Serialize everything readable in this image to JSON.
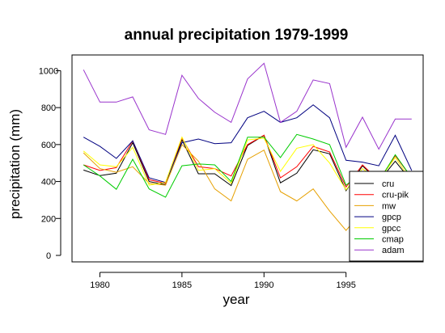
{
  "chart_data": {
    "type": "line",
    "title": "annual precipitation 1979-1999",
    "xlabel": "year",
    "ylabel": "precipitation (mm)",
    "xlim": [
      1978.3,
      1999.7
    ],
    "ylim": [
      -35,
      1085
    ],
    "x_ticks": [
      1980,
      1985,
      1990,
      1995
    ],
    "y_ticks": [
      0,
      200,
      400,
      600,
      800,
      1000
    ],
    "legend_position": "bottom-right",
    "grid": false,
    "x": [
      1979,
      1980,
      1981,
      1982,
      1983,
      1984,
      1985,
      1986,
      1987,
      1988,
      1989,
      1990,
      1991,
      1992,
      1993,
      1994,
      1995,
      1996,
      1997,
      1998,
      1999
    ],
    "series": [
      {
        "name": "cru",
        "color": "#000000",
        "values": [
          462,
          432,
          445,
          610,
          400,
          383,
          625,
          442,
          442,
          378,
          595,
          650,
          393,
          445,
          572,
          550,
          350,
          485,
          400,
          510,
          400
        ]
      },
      {
        "name": "cru-pik",
        "color": "#ff0000",
        "values": [
          490,
          460,
          475,
          620,
          410,
          390,
          635,
          480,
          470,
          430,
          600,
          650,
          420,
          480,
          590,
          560,
          370,
          490,
          405,
          540,
          420
        ]
      },
      {
        "name": "mw",
        "color": "#e6a000",
        "values": [
          555,
          470,
          450,
          480,
          390,
          380,
          600,
          510,
          360,
          295,
          520,
          570,
          345,
          295,
          360,
          240,
          135,
          240,
          175,
          250,
          185
        ]
      },
      {
        "name": "gpcp",
        "color": "#000080",
        "values": [
          640,
          590,
          525,
          620,
          420,
          395,
          610,
          630,
          605,
          610,
          745,
          780,
          720,
          745,
          815,
          745,
          515,
          505,
          485,
          650,
          460
        ]
      },
      {
        "name": "gpcc",
        "color": "#ffff00",
        "values": [
          565,
          490,
          480,
          585,
          380,
          395,
          640,
          460,
          470,
          390,
          625,
          635,
          455,
          580,
          600,
          500,
          355,
          470,
          405,
          530,
          400
        ]
      },
      {
        "name": "cmap",
        "color": "#00cc00",
        "values": [
          490,
          430,
          358,
          520,
          360,
          315,
          485,
          495,
          490,
          400,
          640,
          640,
          530,
          655,
          630,
          600,
          380,
          450,
          400,
          545,
          420
        ]
      },
      {
        "name": "adam",
        "color": "#9933cc",
        "values": [
          1005,
          830,
          830,
          858,
          680,
          655,
          975,
          850,
          775,
          720,
          955,
          1040,
          720,
          780,
          950,
          930,
          585,
          748,
          575,
          738,
          738
        ]
      }
    ]
  }
}
